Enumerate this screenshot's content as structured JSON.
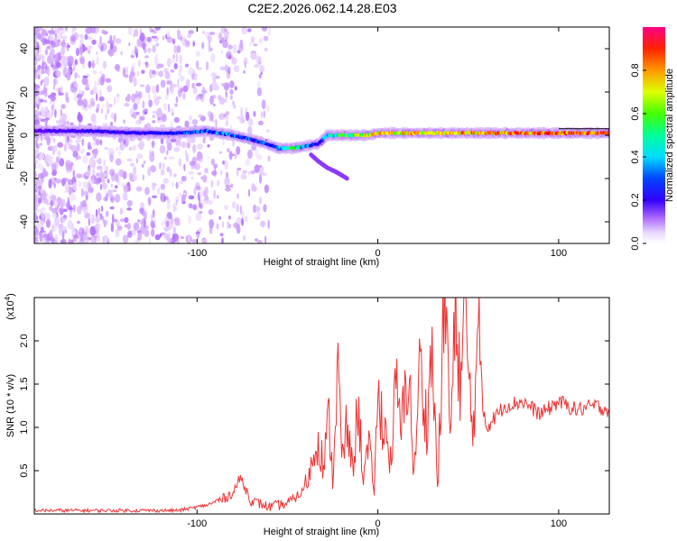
{
  "chart_data": [
    {
      "type": "heatmap",
      "panel": "spectrogram",
      "title": "C2E2.2026.062.14.28.E03",
      "xlabel": "Height of straight line (km)",
      "ylabel": "Frequency (Hz)",
      "xlim": [
        -190,
        128
      ],
      "ylim": [
        -50,
        50
      ],
      "x_ticks": [
        -100,
        0,
        100
      ],
      "y_ticks": [
        -40,
        -20,
        0,
        20,
        40
      ],
      "colorbar": {
        "label": "Normalized spectral amplitude",
        "range": [
          0,
          1
        ],
        "ticks": [
          "0.0",
          "0.2",
          "0.4",
          "0.6",
          "0.8"
        ],
        "tick_values": [
          0.0,
          0.2,
          0.4,
          0.6,
          0.8
        ],
        "colors": [
          "#ffffff",
          "#cc99ff",
          "#6600ff",
          "#0000ff",
          "#00ffff",
          "#00ff00",
          "#ffff00",
          "#ff8000",
          "#ff0000",
          "#ff0080"
        ]
      },
      "ridge": {
        "x": [
          -190,
          -160,
          -130,
          -110,
          -95,
          -80,
          -65,
          -55,
          -47,
          -40,
          -33,
          -28,
          -22,
          -15,
          -5,
          0,
          20,
          60,
          100,
          128
        ],
        "freq_hz": [
          2,
          2,
          1,
          1,
          2,
          0,
          -3,
          -6,
          -6,
          -5,
          -4,
          0,
          0,
          0,
          0,
          1,
          1,
          1,
          1,
          1
        ],
        "amplitude": [
          0.25,
          0.3,
          0.3,
          0.35,
          0.4,
          0.4,
          0.35,
          0.45,
          0.55,
          0.4,
          0.35,
          0.45,
          0.55,
          0.6,
          0.7,
          0.75,
          0.75,
          0.8,
          0.85,
          0.85
        ]
      },
      "branch": {
        "x": [
          -37,
          -33,
          -28,
          -23,
          -19,
          -17
        ],
        "freq_hz": [
          -9,
          -12,
          -15,
          -17,
          -19,
          -20
        ]
      }
    },
    {
      "type": "line",
      "panel": "snr",
      "xlabel": "Height of straight line (km)",
      "ylabel": "SNR (10 * v/v)",
      "y_scale_label": "(x10",
      "y_scale_exp": "4",
      "xlim": [
        -190,
        128
      ],
      "ylim": [
        0,
        2.5
      ],
      "x_ticks": [
        -100,
        0,
        100
      ],
      "y_ticks": [
        0.5,
        1.0,
        1.5,
        2.0
      ],
      "y_tick_labels": [
        "0.5",
        "1.0",
        "1.5",
        "2.0"
      ],
      "color": "#ee3333",
      "series": [
        {
          "name": "SNR",
          "x": [
            -190,
            -150,
            -110,
            -95,
            -85,
            -80,
            -76,
            -70,
            -60,
            -50,
            -42,
            -38,
            -33,
            -30,
            -27,
            -25,
            -22,
            -20,
            -17,
            -14,
            -11,
            -8,
            -5,
            -2,
            0,
            3,
            7,
            10,
            13,
            17,
            20,
            23,
            27,
            30,
            33,
            36,
            38,
            40,
            43,
            46,
            48,
            52,
            56,
            60,
            70,
            80,
            90,
            100,
            110,
            120,
            128
          ],
          "values": [
            0.04,
            0.04,
            0.04,
            0.1,
            0.18,
            0.25,
            0.42,
            0.15,
            0.08,
            0.12,
            0.25,
            0.45,
            0.9,
            0.55,
            1.1,
            0.4,
            1.75,
            0.6,
            1.0,
            0.5,
            1.25,
            0.45,
            0.75,
            0.3,
            1.3,
            1.1,
            0.6,
            1.45,
            0.95,
            1.75,
            0.4,
            1.7,
            1.05,
            1.9,
            0.3,
            2.0,
            2.5,
            0.8,
            2.3,
            1.5,
            2.35,
            1.0,
            1.9,
            1.0,
            1.25,
            1.3,
            1.15,
            1.3,
            1.2,
            1.25,
            1.2
          ]
        }
      ]
    }
  ]
}
